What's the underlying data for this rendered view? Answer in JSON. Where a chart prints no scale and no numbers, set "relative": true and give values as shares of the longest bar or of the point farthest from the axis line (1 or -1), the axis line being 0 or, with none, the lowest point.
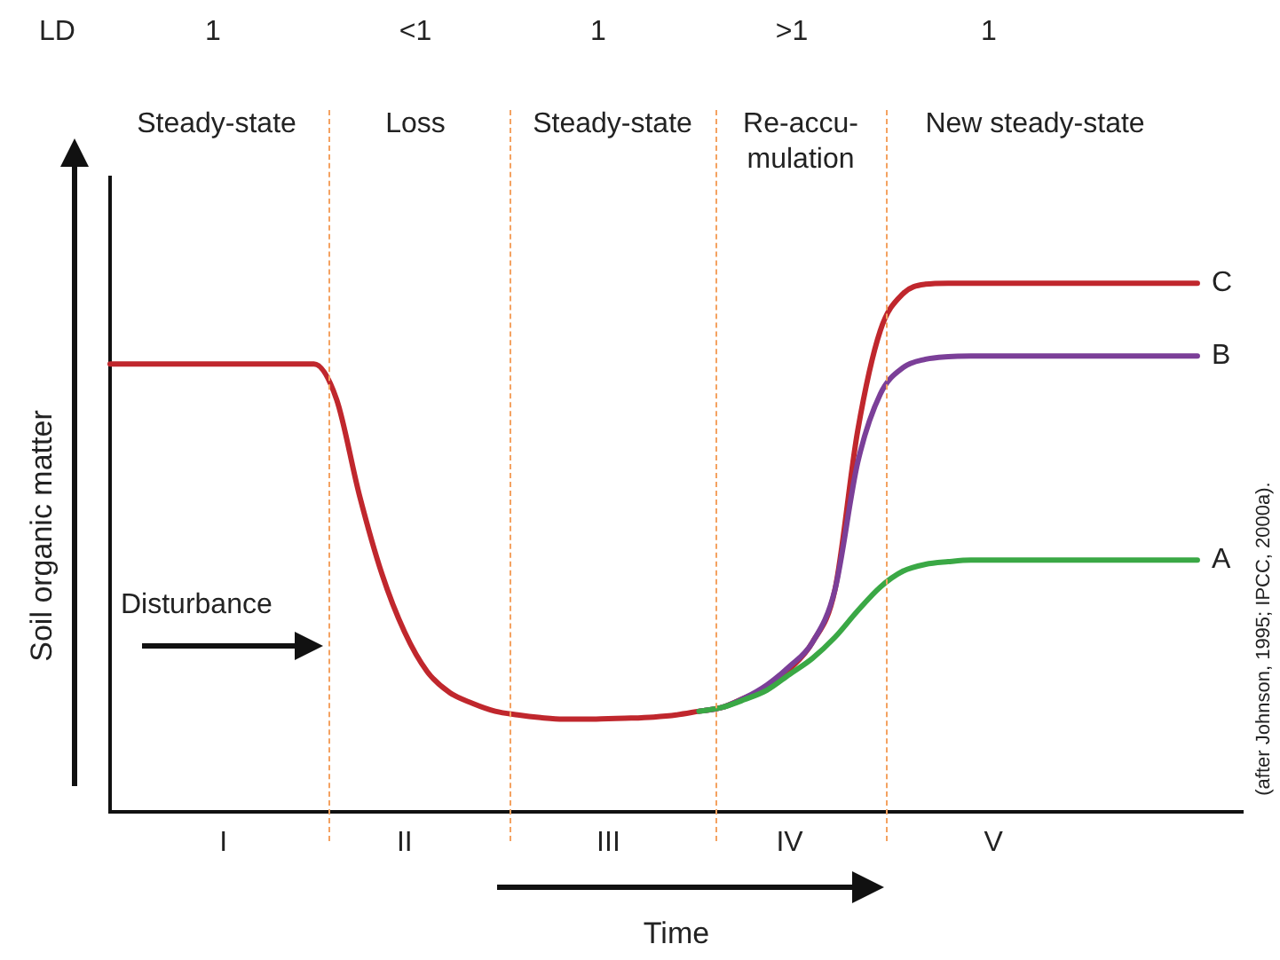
{
  "chart_data": {
    "type": "line",
    "relative": true,
    "xlabel": "Time",
    "ylabel": "Soil organic matter",
    "categories": [
      null,
      null,
      null,
      null,
      null,
      "I",
      null,
      null,
      null,
      null,
      null,
      null,
      null,
      "II",
      null,
      null,
      null,
      null,
      null,
      null,
      null,
      null,
      "III",
      null,
      null,
      null,
      null,
      null,
      null,
      null,
      "IV",
      null,
      null,
      null,
      null,
      null,
      null,
      null,
      null,
      "V",
      null,
      null,
      null,
      null,
      null,
      null,
      null,
      null,
      null,
      null,
      null
    ],
    "legend": false,
    "marker": "none",
    "line_style": "solid",
    "annotations": [
      "LD",
      "1",
      "<1",
      "1",
      ">1",
      "1",
      "Steady-state",
      "Loss",
      "Steady-state",
      "Re-accu-mulation",
      "New steady-state",
      "Disturbance",
      "(after Johnson, 1995; IPCC, 2000a)."
    ],
    "series": [
      {
        "name": "A",
        "color": "#3aa845",
        "values": [
          null,
          null,
          null,
          null,
          null,
          null,
          null,
          null,
          null,
          null,
          null,
          null,
          null,
          null,
          null,
          null,
          null,
          null,
          null,
          null,
          null,
          null,
          null,
          null,
          null,
          null,
          0.19,
          0.197,
          0.212,
          0.23,
          0.26,
          0.29,
          0.33,
          0.38,
          0.425,
          0.455,
          0.468,
          0.473,
          0.476,
          0.476,
          0.476,
          0.476,
          0.476,
          0.476,
          0.476,
          0.476,
          0.476,
          0.476,
          0.476,
          null,
          null
        ]
      },
      {
        "name": "B",
        "color": "#7b3f98",
        "values": [
          null,
          null,
          null,
          null,
          null,
          null,
          null,
          null,
          null,
          null,
          null,
          null,
          null,
          null,
          null,
          null,
          null,
          null,
          null,
          null,
          null,
          null,
          null,
          null,
          null,
          null,
          0.19,
          0.197,
          0.215,
          0.24,
          0.275,
          0.32,
          0.42,
          0.66,
          0.79,
          0.84,
          0.856,
          0.861,
          0.862,
          0.862,
          0.862,
          0.862,
          0.862,
          0.862,
          0.862,
          0.862,
          0.862,
          0.862,
          0.862,
          null,
          null
        ]
      },
      {
        "name": "C",
        "color": "#c0272d",
        "values": [
          0.847,
          0.847,
          0.847,
          0.847,
          0.847,
          0.847,
          0.847,
          0.847,
          0.847,
          0.847,
          0.78,
          0.6,
          0.45,
          0.34,
          0.265,
          0.225,
          0.205,
          0.19,
          0.183,
          0.178,
          0.175,
          0.175,
          0.176,
          0.177,
          0.179,
          0.183,
          0.19,
          0.197,
          0.215,
          0.235,
          0.27,
          0.32,
          0.42,
          0.72,
          0.91,
          0.98,
          0.998,
          1,
          1,
          1,
          1,
          1,
          1,
          1,
          1,
          1,
          1,
          1,
          1,
          null,
          null
        ]
      }
    ]
  }
}
